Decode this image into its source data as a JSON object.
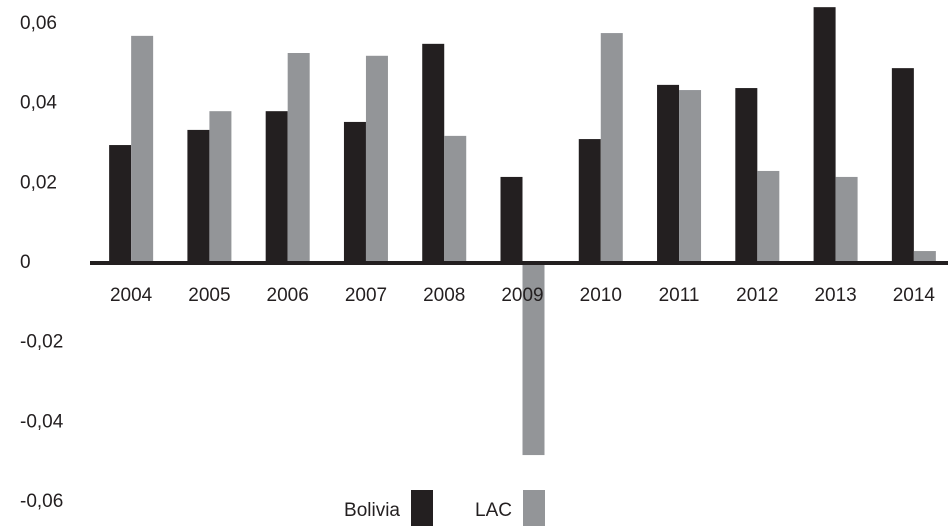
{
  "chart_data": {
    "type": "bar",
    "categories": [
      "2004",
      "2005",
      "2006",
      "2007",
      "2008",
      "2009",
      "2010",
      "2011",
      "2012",
      "2013",
      "2014"
    ],
    "series": [
      {
        "name": "Bolivia",
        "color": "#231f20",
        "values": [
          0.0296,
          0.0334,
          0.0381,
          0.0354,
          0.055,
          0.0216,
          0.0311,
          0.0447,
          0.0439,
          0.0642,
          0.0489
        ]
      },
      {
        "name": "LAC",
        "color": "#939598",
        "values": [
          0.057,
          0.0381,
          0.0527,
          0.052,
          0.0319,
          -0.0482,
          0.0577,
          0.0434,
          0.0231,
          0.0216,
          0.003
        ]
      }
    ],
    "ylim": [
      -0.066,
      0.066
    ],
    "yticks": [
      {
        "value": 0.06,
        "label": "0,06"
      },
      {
        "value": 0.04,
        "label": "0,04"
      },
      {
        "value": 0.02,
        "label": "0,02"
      },
      0,
      {
        "value": -0.02,
        "label": "-0,02"
      },
      {
        "value": -0.04,
        "label": "-0,04"
      },
      {
        "value": -0.06,
        "label": "-0,06"
      }
    ],
    "legend": "bottom"
  }
}
